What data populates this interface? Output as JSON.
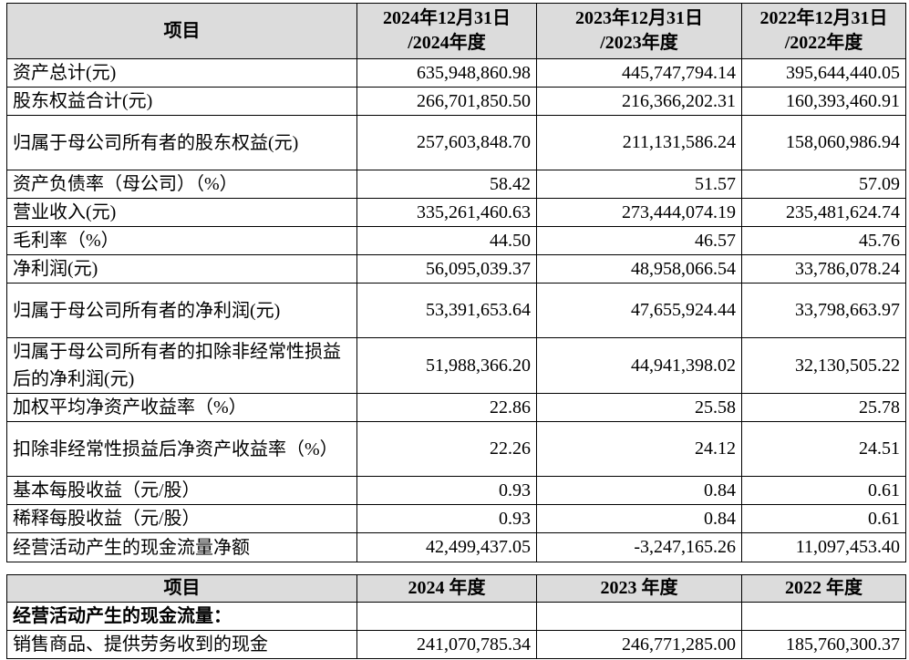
{
  "table1": {
    "headers": [
      [
        "项目"
      ],
      [
        "2024年12月31日",
        "/2024年度"
      ],
      [
        "2023年12月31日",
        "/2023年度"
      ],
      [
        "2022年12月31日",
        "/2022年度"
      ]
    ],
    "rows": [
      {
        "label": "资产总计(元)",
        "v": [
          "635,948,860.98",
          "445,747,794.14",
          "395,644,440.05"
        ]
      },
      {
        "label": "股东权益合计(元)",
        "v": [
          "266,701,850.50",
          "216,366,202.31",
          "160,393,460.91"
        ]
      },
      {
        "label": "归属于母公司所有者的股东权益(元)",
        "v": [
          "257,603,848.70",
          "211,131,586.24",
          "158,060,986.94"
        ]
      },
      {
        "label": "资产负债率（母公司）（%）",
        "v": [
          "58.42",
          "51.57",
          "57.09"
        ]
      },
      {
        "label": "营业收入(元)",
        "v": [
          "335,261,460.63",
          "273,444,074.19",
          "235,481,624.74"
        ]
      },
      {
        "label": "毛利率（%）",
        "v": [
          "44.50",
          "46.57",
          "45.76"
        ]
      },
      {
        "label": "净利润(元)",
        "v": [
          "56,095,039.37",
          "48,958,066.54",
          "33,786,078.24"
        ]
      },
      {
        "label": "归属于母公司所有者的净利润(元)",
        "v": [
          "53,391,653.64",
          "47,655,924.44",
          "33,798,663.97"
        ]
      },
      {
        "label": "归属于母公司所有者的扣除非经常性损益后的净利润(元)",
        "v": [
          "51,988,366.20",
          "44,941,398.02",
          "32,130,505.22"
        ]
      },
      {
        "label": "加权平均净资产收益率（%）",
        "v": [
          "22.86",
          "25.58",
          "25.78"
        ]
      },
      {
        "label": "扣除非经常性损益后净资产收益率（%）",
        "v": [
          "22.26",
          "24.12",
          "24.51"
        ]
      },
      {
        "label": "基本每股收益（元/股）",
        "v": [
          "0.93",
          "0.84",
          "0.61"
        ]
      },
      {
        "label": "稀释每股收益（元/股）",
        "v": [
          "0.93",
          "0.84",
          "0.61"
        ]
      },
      {
        "label": "经营活动产生的现金流量净额",
        "v": [
          "42,499,437.05",
          "-3,247,165.26",
          "11,097,453.40"
        ]
      }
    ]
  },
  "table2": {
    "headers": [
      "项目",
      "2024 年度",
      "2023 年度",
      "2022 年度"
    ],
    "section_label": "经营活动产生的现金流量：",
    "rows": [
      {
        "label": "销售商品、提供劳务收到的现金",
        "v": [
          "241,070,785.34",
          "246,771,285.00",
          "185,760,300.37"
        ]
      }
    ]
  }
}
